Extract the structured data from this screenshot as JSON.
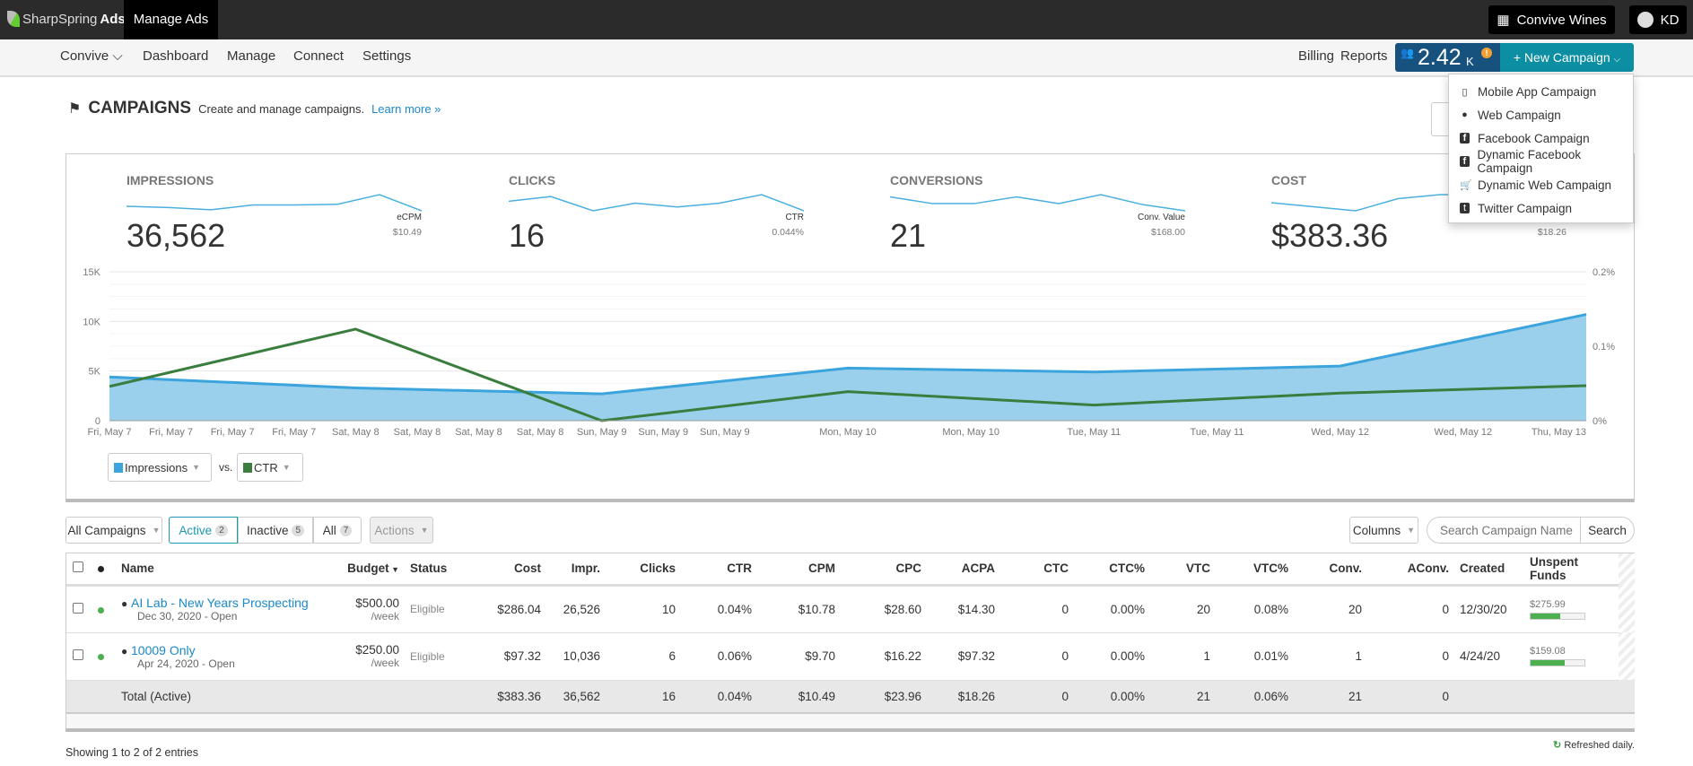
{
  "topbar": {
    "logo": "SharpSpring",
    "logo_bold": "Ads",
    "app": "Manage Ads",
    "account": "Convive Wines",
    "user": "KD"
  },
  "nav": {
    "items": [
      "Convive",
      "Dashboard",
      "Manage",
      "Connect",
      "Settings"
    ],
    "right": [
      "Billing",
      "Reports"
    ],
    "balance": "2.42",
    "balance_unit": "K",
    "new_campaign": "+ New Campaign"
  },
  "menu": [
    {
      "icon": "mobile-icon",
      "label": "Mobile App Campaign"
    },
    {
      "icon": "globe-icon",
      "label": "Web Campaign"
    },
    {
      "icon": "facebook-icon",
      "label": "Facebook Campaign"
    },
    {
      "icon": "facebook-icon",
      "label": "Dynamic Facebook Campaign"
    },
    {
      "icon": "cart-icon",
      "label": "Dynamic Web Campaign"
    },
    {
      "icon": "twitter-icon",
      "label": "Twitter Campaign"
    }
  ],
  "header": {
    "title": "CAMPAIGNS",
    "subtitle": "Create and manage campaigns.",
    "learn_more": "Learn more »"
  },
  "metrics": [
    {
      "label": "IMPRESSIONS",
      "value": "36,562",
      "sub_label": "eCPM",
      "sub_value": "$10.49",
      "spark": [
        4400,
        4000,
        3300,
        4800,
        4800,
        5000,
        8000,
        3000
      ]
    },
    {
      "label": "CLICKS",
      "value": "16",
      "sub_label": "CTR",
      "sub_value": "0.044%",
      "spark": [
        3,
        4,
        1,
        2.6,
        1.8,
        2.6,
        4.4,
        1
      ]
    },
    {
      "label": "CONVERSIONS",
      "value": "21",
      "sub_label": "Conv. Value",
      "sub_value": "$168.00",
      "spark": [
        4,
        2.8,
        2.8,
        4,
        2.8,
        4.4,
        2.6,
        1.5
      ]
    },
    {
      "label": "COST",
      "value": "$383.36",
      "sub_label": "",
      "sub_value": "$18.26",
      "spark": [
        5,
        4.8,
        4.6,
        5.2,
        5.4,
        5.4,
        5.4,
        5.4
      ]
    }
  ],
  "chart_data": {
    "type": "area+line",
    "x": [
      "Fri, May 7",
      "Sat, May 8",
      "Sun, May 9",
      "Mon, May 10",
      "Tue, May 11",
      "Wed, May 12",
      "Thu, May 13"
    ],
    "x_tick_labels": [
      "Fri, May 7",
      "Fri, May 7",
      "Fri, May 7",
      "Fri, May 7",
      "Sat, May 8",
      "Sat, May 8",
      "Sat, May 8",
      "Sat, May 8",
      "Sun, May 9",
      "Sun, May 9",
      "Sun, May 9",
      "Mon, May 10",
      "Mon, May 10",
      "Tue, May 11",
      "Tue, May 11",
      "Wed, May 12",
      "Wed, May 12",
      "Thu, May 13"
    ],
    "series": [
      {
        "name": "Impressions",
        "axis": "left",
        "type": "area",
        "color": "#3ba4dc",
        "values": [
          4400,
          3300,
          2700,
          5300,
          4900,
          5500,
          10700
        ]
      },
      {
        "name": "CTR",
        "axis": "right",
        "type": "line",
        "color": "#3a7d3f",
        "values": [
          0.046,
          0.123,
          0,
          0.039,
          0.021,
          0.037,
          0.047
        ]
      }
    ],
    "left_axis": {
      "ticks": [
        "0",
        "5K",
        "10K",
        "15K"
      ],
      "range": [
        0,
        15000
      ]
    },
    "right_axis": {
      "ticks": [
        "0%",
        "0.1%",
        "0.2%"
      ],
      "range": [
        0,
        0.2
      ]
    },
    "grid": true,
    "legend_vs": "vs."
  },
  "toolbar": {
    "filter": "All Campaigns",
    "tabs": [
      {
        "label": "Active",
        "count": "2"
      },
      {
        "label": "Inactive",
        "count": "5"
      },
      {
        "label": "All",
        "count": "7"
      }
    ],
    "actions": "Actions",
    "columns": "Columns",
    "search_placeholder": "Search Campaign Name",
    "search": "Search"
  },
  "table": {
    "headers": [
      "Name",
      "Budget",
      "Status",
      "Cost",
      "Impr.",
      "Clicks",
      "CTR",
      "CPM",
      "CPC",
      "ACPA",
      "CTC",
      "CTC%",
      "VTC",
      "VTC%",
      "Conv.",
      "AConv.",
      "Created",
      "Unspent Funds"
    ],
    "rows": [
      {
        "name": "AI Lab - New Years Prospecting",
        "date": "Dec 30, 2020 - Open",
        "budget": "$500.00",
        "per": "/week",
        "status": "Eligible",
        "cells": [
          "$286.04",
          "26,526",
          "10",
          "0.04%",
          "$10.78",
          "$28.60",
          "$14.30",
          "0",
          "0.00%",
          "20",
          "0.08%",
          "20",
          "0"
        ],
        "created": "12/30/20",
        "unspent": "$275.99",
        "unspent_pct": 55
      },
      {
        "name": "10009 Only",
        "date": "Apr 24, 2020 - Open",
        "budget": "$250.00",
        "per": "/week",
        "status": "Eligible",
        "cells": [
          "$97.32",
          "10,036",
          "6",
          "0.06%",
          "$9.70",
          "$16.22",
          "$97.32",
          "0",
          "0.00%",
          "1",
          "0.01%",
          "1",
          "0"
        ],
        "created": "4/24/20",
        "unspent": "$159.08",
        "unspent_pct": 64
      }
    ],
    "total": {
      "label": "Total (Active)",
      "cells": [
        "$383.36",
        "36,562",
        "16",
        "0.04%",
        "$10.49",
        "$23.96",
        "$18.26",
        "0",
        "0.00%",
        "21",
        "0.06%",
        "21",
        "0"
      ]
    }
  },
  "footer": {
    "showing": "Showing 1 to 2 of 2 entries",
    "refreshed": "Refreshed daily."
  },
  "colors": {
    "active_dot": "#4caf50",
    "link": "#1a88c9",
    "badge": "#17527e",
    "new_campaign": "#0c8ea3"
  }
}
